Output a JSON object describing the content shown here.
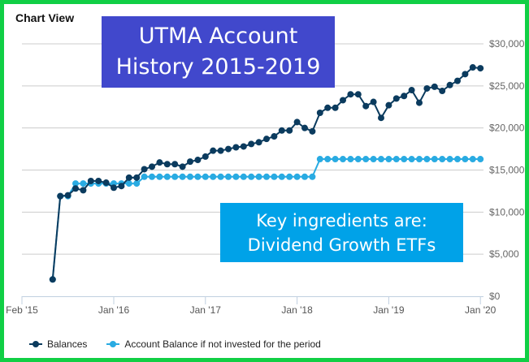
{
  "header": {
    "title": "Chart View"
  },
  "overlay": {
    "title_lines": [
      "UTMA Account",
      "History 2015-2019"
    ],
    "note_lines": [
      "Key ingredients are:",
      "Dividend Growth ETFs"
    ],
    "title_color": "#4148cc",
    "note_color": "#00a2e8"
  },
  "frame_color": "#11cf45",
  "chart_data": {
    "type": "line",
    "title": "",
    "xlabel": "",
    "ylabel": "",
    "ylim": [
      0,
      30000
    ],
    "y_ticks": [
      0,
      5000,
      10000,
      15000,
      20000,
      25000,
      30000
    ],
    "y_tick_labels": [
      "$0",
      "$5,000",
      "$10,000",
      "$15,000",
      "$20,000",
      "$25,000",
      "$30,000"
    ],
    "y_axis_side": "right",
    "x_ticks": [
      "2015-02",
      "2016-01",
      "2017-01",
      "2018-01",
      "2019-01",
      "2020-01"
    ],
    "x_tick_labels": [
      "Feb '15",
      "Jan '16",
      "Jan '17",
      "Jan '18",
      "Jan '19",
      "Jan '20"
    ],
    "grid": true,
    "legend_position": "bottom-left",
    "x": [
      "2015-05",
      "2015-06",
      "2015-07",
      "2015-08",
      "2015-09",
      "2015-10",
      "2015-11",
      "2015-12",
      "2016-01",
      "2016-02",
      "2016-03",
      "2016-04",
      "2016-05",
      "2016-06",
      "2016-07",
      "2016-08",
      "2016-09",
      "2016-10",
      "2016-11",
      "2016-12",
      "2017-01",
      "2017-02",
      "2017-03",
      "2017-04",
      "2017-05",
      "2017-06",
      "2017-07",
      "2017-08",
      "2017-09",
      "2017-10",
      "2017-11",
      "2017-12",
      "2018-01",
      "2018-02",
      "2018-03",
      "2018-04",
      "2018-05",
      "2018-06",
      "2018-07",
      "2018-08",
      "2018-09",
      "2018-10",
      "2018-11",
      "2018-12",
      "2019-01",
      "2019-02",
      "2019-03",
      "2019-04",
      "2019-05",
      "2019-06",
      "2019-07",
      "2019-08",
      "2019-09",
      "2019-10",
      "2019-11",
      "2019-12",
      "2020-01"
    ],
    "series": [
      {
        "name": "Balances",
        "color": "#0b3b5e",
        "values": [
          2000,
          11900,
          12000,
          12800,
          12600,
          13700,
          13700,
          13500,
          12900,
          13100,
          14100,
          14100,
          15100,
          15400,
          15900,
          15700,
          15700,
          15400,
          16000,
          16200,
          16600,
          17300,
          17300,
          17500,
          17700,
          17800,
          18100,
          18300,
          18700,
          19000,
          19700,
          19700,
          20700,
          20000,
          19600,
          21800,
          22400,
          22400,
          23300,
          24000,
          24000,
          22600,
          23100,
          21200,
          22700,
          23500,
          23800,
          24500,
          23000,
          24700,
          24900,
          24400,
          25100,
          25600,
          26400,
          27200,
          27100
        ]
      },
      {
        "name": "Account Balance if not invested for the period",
        "color": "#29abe2",
        "values": [
          2000,
          11900,
          11900,
          13400,
          13400,
          13400,
          13400,
          13400,
          13400,
          13400,
          13400,
          13400,
          14200,
          14200,
          14200,
          14200,
          14200,
          14200,
          14200,
          14200,
          14200,
          14200,
          14200,
          14200,
          14200,
          14200,
          14200,
          14200,
          14200,
          14200,
          14200,
          14200,
          14200,
          14200,
          14200,
          16300,
          16300,
          16300,
          16300,
          16300,
          16300,
          16300,
          16300,
          16300,
          16300,
          16300,
          16300,
          16300,
          16300,
          16300,
          16300,
          16300,
          16300,
          16300,
          16300,
          16300,
          16300
        ]
      }
    ]
  }
}
